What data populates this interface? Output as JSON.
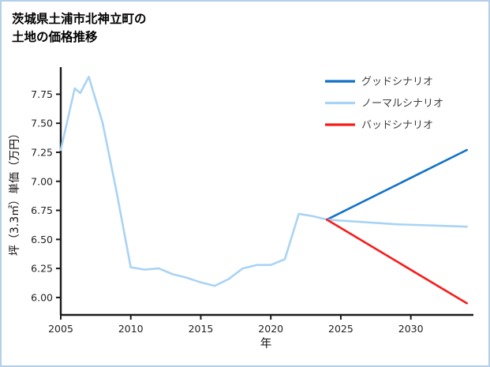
{
  "title": {
    "line1": "茨城県土浦市北神立町の",
    "line2": "土地の価格推移"
  },
  "colors": {
    "good": "#1272c8",
    "normal": "#a9d3f5",
    "bad": "#f81b1b",
    "axis": "#1a1a1a",
    "tick_text": "#222222",
    "legend_text": "#3d3d3d",
    "border": "#b5cfe8"
  },
  "chart_data": {
    "type": "line",
    "title": "茨城県土浦市北神立町の土地の価格推移",
    "xlabel": "年",
    "ylabel": "坪（3.3㎡）単価（万円）",
    "xlim": [
      2005,
      2034.3
    ],
    "ylim": [
      5.85,
      7.97
    ],
    "grid": false,
    "legend_position": "top-right",
    "xticks": [
      {
        "value": 2005,
        "label": "2005"
      },
      {
        "value": 2010,
        "label": "2010"
      },
      {
        "value": 2015,
        "label": "2015"
      },
      {
        "value": 2020,
        "label": "2020"
      },
      {
        "value": 2025,
        "label": "2025"
      },
      {
        "value": 2030,
        "label": "2030"
      }
    ],
    "yticks": [
      {
        "value": 6.0,
        "label": "6.00"
      },
      {
        "value": 6.25,
        "label": "6.25"
      },
      {
        "value": 6.5,
        "label": "6.50"
      },
      {
        "value": 6.75,
        "label": "6.75"
      },
      {
        "value": 7.0,
        "label": "7.00"
      },
      {
        "value": 7.25,
        "label": "7.25"
      },
      {
        "value": 7.5,
        "label": "7.50"
      },
      {
        "value": 7.75,
        "label": "7.75"
      }
    ],
    "legend": [
      {
        "label": "グッドシナリオ",
        "color_key": "good"
      },
      {
        "label": "ノーマルシナリオ",
        "color_key": "normal"
      },
      {
        "label": "バッドシナリオ",
        "color_key": "bad"
      }
    ],
    "series": [
      {
        "key": "historical",
        "color_key": "normal",
        "x": [
          2005,
          2006,
          2006.4,
          2007,
          2008,
          2009,
          2010,
          2011,
          2012,
          2013,
          2014,
          2015,
          2016,
          2017,
          2018,
          2019,
          2020,
          2021,
          2022,
          2023,
          2024
        ],
        "y": [
          7.27,
          7.8,
          7.76,
          7.9,
          7.5,
          6.9,
          6.26,
          6.24,
          6.25,
          6.2,
          6.17,
          6.13,
          6.1,
          6.16,
          6.25,
          6.28,
          6.28,
          6.33,
          6.72,
          6.7,
          6.67
        ]
      },
      {
        "key": "good-scenario",
        "color_key": "good",
        "x": [
          2024,
          2034
        ],
        "y": [
          6.67,
          7.27
        ]
      },
      {
        "key": "normal-scenario",
        "color_key": "normal",
        "x": [
          2024,
          2029,
          2034
        ],
        "y": [
          6.67,
          6.63,
          6.61
        ]
      },
      {
        "key": "bad-scenario",
        "color_key": "bad",
        "x": [
          2024,
          2034
        ],
        "y": [
          6.67,
          5.95
        ]
      }
    ]
  }
}
